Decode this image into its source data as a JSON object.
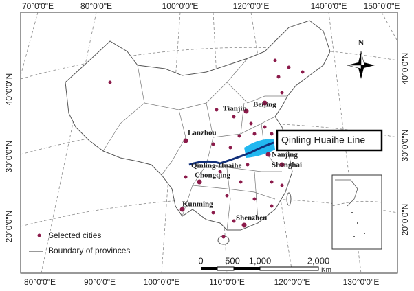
{
  "map": {
    "graticule": {
      "top": [
        "70°0'0\"E",
        "80°0'0\"E",
        "100°0'0\"E",
        "120°0'0\"E",
        "140°0'0\"E",
        "150°0'0\"E"
      ],
      "bottom": [
        "80°0'0\"E",
        "90°0'0\"E",
        "100°0'0\"E",
        "110°0'0\"E",
        "120°0'0\"E",
        "130°0'0\"E"
      ],
      "left": [
        "40°0'0\"N",
        "30°0'0\"N",
        "20°0'0\"N"
      ],
      "right": [
        "40°0'0\"N",
        "30°0'0\"N",
        "20°0'0\"N"
      ]
    },
    "cities": [
      "Beijing",
      "Tianjin",
      "Lanzhou",
      "Nanjing",
      "Shanghai",
      "Chongqing",
      "Kunming",
      "Shenzhen"
    ],
    "line_label": "Qinling-Huaihe",
    "callout": "Qinling Huaihe Line",
    "north": "N",
    "legend": [
      "Selected cities",
      "Boundary of provinces"
    ],
    "scale": {
      "ticks": [
        "0",
        "500",
        "1,000",
        "2,000"
      ],
      "unit": "Km"
    }
  }
}
